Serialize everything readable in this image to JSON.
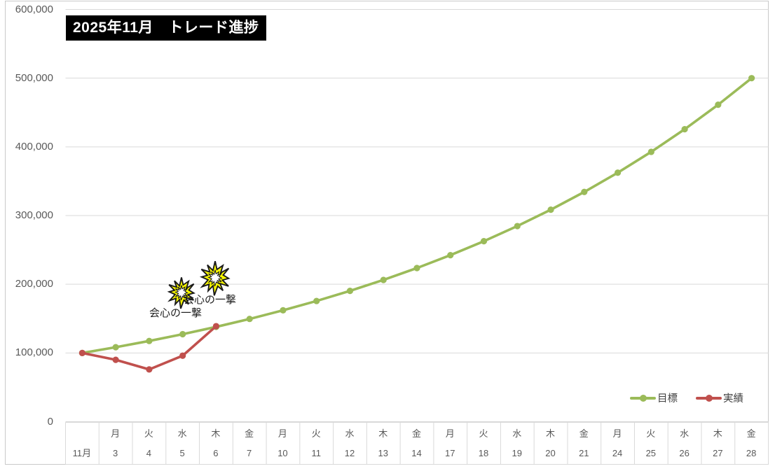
{
  "chart_data": {
    "type": "line",
    "title": "2025年11月　トレード進捗",
    "y_tick_labels": [
      "600,000",
      "500,000",
      "400,000",
      "300,000",
      "200,000",
      "100,000",
      "0"
    ],
    "x_weekday_labels": [
      "",
      "月",
      "火",
      "水",
      "木",
      "金",
      "月",
      "火",
      "水",
      "木",
      "金",
      "月",
      "火",
      "水",
      "木",
      "金",
      "月",
      "火",
      "水",
      "木",
      "金"
    ],
    "x_day_labels": [
      "11月",
      "3",
      "4",
      "5",
      "6",
      "7",
      "10",
      "11",
      "12",
      "13",
      "14",
      "17",
      "18",
      "19",
      "20",
      "21",
      "24",
      "25",
      "26",
      "27",
      "28"
    ],
    "ylim": [
      0,
      600000
    ],
    "ytick_interval": 100000,
    "grid": true,
    "legend_position": "inside-bottom-right",
    "series": [
      {
        "name": "目標",
        "color": "#9BBB59",
        "values": [
          100000,
          108380,
          117462,
          127305,
          137973,
          149535,
          162066,
          175647,
          190365,
          206316,
          223607,
          242347,
          262658,
          284672,
          308529,
          334370,
          362390,
          392749,
          425658,
          461320,
          500000
        ]
      },
      {
        "name": "実績",
        "color": "#C0504D",
        "values": [
          100000,
          90000,
          76000,
          96000,
          139000
        ]
      }
    ],
    "annotations": [
      {
        "text": "会心の一撃"
      },
      {
        "text": "会心の一撃"
      }
    ],
    "colors": {
      "grid": "#D9D9D9",
      "axis_text": "#595959",
      "chart_border": "#C9C9C9",
      "starburst_fill": "#FFFF00",
      "starburst_outline": "#1A1A1A",
      "title_bg": "#000000",
      "title_text": "#FFFFFF"
    }
  }
}
